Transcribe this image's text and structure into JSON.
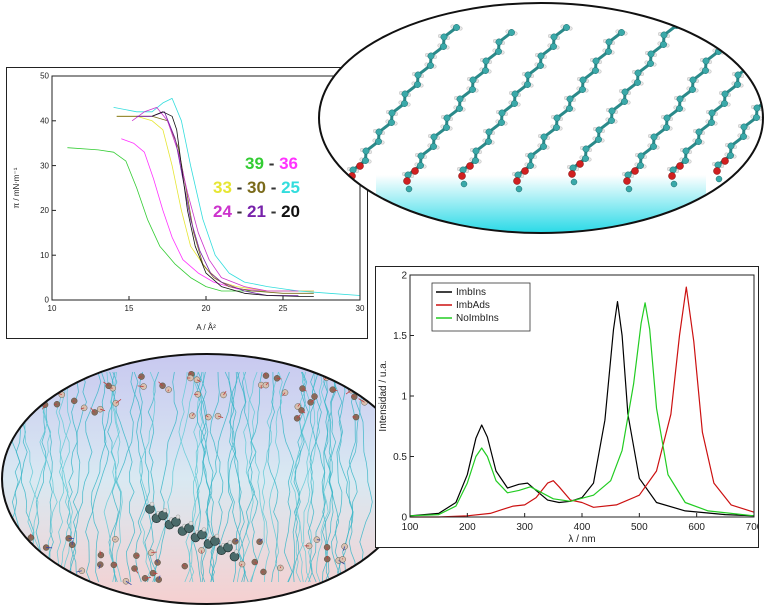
{
  "isotherm": {
    "ylabel": "π / mN⋅m⁻¹",
    "xlabel": "A / Å²",
    "xticks": [
      "10",
      "15",
      "20",
      "25",
      "30"
    ],
    "yticks": [
      "0",
      "10",
      "20",
      "30",
      "40",
      "50"
    ],
    "legend_rows": [
      [
        {
          "text": "39",
          "color": "#33cc33"
        },
        {
          "text": " - ",
          "color": "#333333"
        },
        {
          "text": "36",
          "color": "#ff33ff"
        }
      ],
      [
        {
          "text": "33",
          "color": "#e6e633"
        },
        {
          "text": " - ",
          "color": "#333333"
        },
        {
          "text": "30",
          "color": "#7a6a1a"
        },
        {
          "text": " - ",
          "color": "#333333"
        },
        {
          "text": "25",
          "color": "#33dddd"
        }
      ],
      [
        {
          "text": "24",
          "color": "#cc33cc"
        },
        {
          "text": " - ",
          "color": "#333333"
        },
        {
          "text": "21",
          "color": "#7722aa"
        },
        {
          "text": " - ",
          "color": "#333333"
        },
        {
          "text": "20",
          "color": "#111111"
        }
      ]
    ]
  },
  "spectrum": {
    "ylabel": "Intensidad / u.a.",
    "xlabel": "λ / nm",
    "xticks": [
      "100",
      "200",
      "300",
      "400",
      "500",
      "600",
      "700"
    ],
    "yticks": [
      "0",
      "0.5",
      "1",
      "1.5",
      "2"
    ],
    "legend": [
      {
        "label": "ImbIns",
        "color": "#000000"
      },
      {
        "label": "ImbAds",
        "color": "#cc1111"
      },
      {
        "label": "NoImbIns",
        "color": "#22cc22"
      }
    ]
  },
  "chart_data": [
    {
      "type": "line",
      "xlabel": "A / Å²",
      "ylabel": "π / mN⋅m⁻¹",
      "xlim": [
        10,
        30
      ],
      "ylim": [
        0,
        50
      ],
      "series": [
        {
          "name": "39",
          "color": "#33cc33",
          "x": [
            11,
            13,
            14,
            14.8,
            15.5,
            16.2,
            17,
            18,
            19,
            20,
            21,
            23,
            25,
            27
          ],
          "y": [
            34,
            33.5,
            33,
            31,
            25,
            18,
            12,
            8,
            5,
            3,
            2,
            2,
            2,
            2
          ]
        },
        {
          "name": "36",
          "color": "#ff33ff",
          "x": [
            14.5,
            15.3,
            16,
            16.6,
            17.2,
            17.8,
            18.5,
            19.5,
            20.5,
            22,
            24,
            26,
            27
          ],
          "y": [
            36,
            35,
            33,
            27,
            20,
            14,
            9,
            6,
            4,
            2.5,
            2,
            2,
            2
          ]
        },
        {
          "name": "33",
          "color": "#e6e633",
          "x": [
            14.2,
            15.5,
            16.5,
            17.2,
            17.8,
            18.4,
            19,
            20,
            21,
            22,
            24,
            26,
            27
          ],
          "y": [
            41,
            41,
            40,
            38,
            30,
            20,
            12,
            7,
            4,
            3,
            2,
            2,
            2
          ]
        },
        {
          "name": "30",
          "color": "#7a6a1a",
          "x": [
            14.2,
            15.5,
            16.5,
            17.5,
            18.2,
            18.7,
            19.2,
            19.8,
            20.5,
            21.5,
            23,
            25,
            27
          ],
          "y": [
            41,
            41,
            41,
            40,
            34,
            25,
            15,
            8,
            5,
            3,
            2,
            1.5,
            1.5
          ]
        },
        {
          "name": "25",
          "color": "#33dddd",
          "x": [
            14,
            15.5,
            16.5,
            17.2,
            17.8,
            18.4,
            19,
            19.8,
            20.6,
            21.5,
            22.5,
            24,
            26,
            28,
            30
          ],
          "y": [
            43,
            42,
            42,
            44,
            45,
            40,
            30,
            18,
            10,
            6,
            4,
            3,
            2,
            1.5,
            1
          ]
        },
        {
          "name": "24",
          "color": "#cc33cc",
          "x": [
            15.2,
            16,
            16.8,
            17.5,
            18.2,
            18.8,
            19.5,
            20.2,
            21,
            22.5,
            24,
            26
          ],
          "y": [
            40,
            42,
            43,
            40,
            33,
            24,
            15,
            9,
            5,
            3,
            2,
            2
          ]
        },
        {
          "name": "21",
          "color": "#7722aa",
          "x": [
            15.5,
            16.5,
            17.3,
            18,
            18.5,
            19,
            19.6,
            20.3,
            21,
            22.5,
            24,
            26
          ],
          "y": [
            41,
            41,
            42,
            36,
            27,
            18,
            11,
            6,
            4,
            2,
            1,
            1
          ]
        },
        {
          "name": "20",
          "color": "#111111",
          "x": [
            16.5,
            17.2,
            17.8,
            18.1,
            18.4,
            18.8,
            19.3,
            20,
            21,
            22.5,
            24,
            26,
            27
          ],
          "y": [
            41,
            42,
            41,
            38,
            30,
            20,
            12,
            6,
            3,
            1.5,
            1,
            0.8,
            0.8
          ]
        }
      ]
    },
    {
      "type": "line",
      "xlabel": "λ / nm",
      "ylabel": "Intensidad / u.a.",
      "xlim": [
        100,
        700
      ],
      "ylim": [
        0,
        2
      ],
      "series": [
        {
          "name": "ImbIns",
          "color": "#000000",
          "x": [
            100,
            150,
            180,
            200,
            215,
            225,
            235,
            250,
            270,
            290,
            305,
            320,
            340,
            360,
            380,
            400,
            420,
            440,
            455,
            462,
            470,
            480,
            500,
            530,
            580,
            650,
            700
          ],
          "y": [
            0.01,
            0.03,
            0.12,
            0.35,
            0.65,
            0.76,
            0.66,
            0.38,
            0.24,
            0.27,
            0.28,
            0.22,
            0.14,
            0.12,
            0.13,
            0.16,
            0.28,
            0.8,
            1.55,
            1.78,
            1.5,
            0.85,
            0.32,
            0.12,
            0.05,
            0.02,
            0.01
          ]
        },
        {
          "name": "ImbAds",
          "color": "#cc1111",
          "x": [
            100,
            150,
            200,
            240,
            260,
            280,
            300,
            320,
            340,
            350,
            360,
            380,
            400,
            420,
            460,
            500,
            530,
            555,
            570,
            582,
            595,
            610,
            630,
            660,
            700
          ],
          "y": [
            0,
            0,
            0.01,
            0.03,
            0.06,
            0.09,
            0.1,
            0.16,
            0.28,
            0.3,
            0.25,
            0.14,
            0.12,
            0.08,
            0.1,
            0.18,
            0.38,
            0.85,
            1.5,
            1.9,
            1.45,
            0.7,
            0.28,
            0.1,
            0.04
          ]
        },
        {
          "name": "NoImbIns",
          "color": "#22cc22",
          "x": [
            100,
            150,
            180,
            200,
            215,
            225,
            235,
            250,
            270,
            290,
            310,
            330,
            350,
            380,
            420,
            450,
            470,
            490,
            503,
            510,
            518,
            530,
            550,
            580,
            620,
            700
          ],
          "y": [
            0.01,
            0.02,
            0.09,
            0.28,
            0.5,
            0.57,
            0.5,
            0.3,
            0.2,
            0.22,
            0.25,
            0.2,
            0.15,
            0.13,
            0.18,
            0.3,
            0.55,
            1.1,
            1.6,
            1.77,
            1.55,
            0.9,
            0.35,
            0.12,
            0.05,
            0.01
          ]
        }
      ]
    }
  ]
}
